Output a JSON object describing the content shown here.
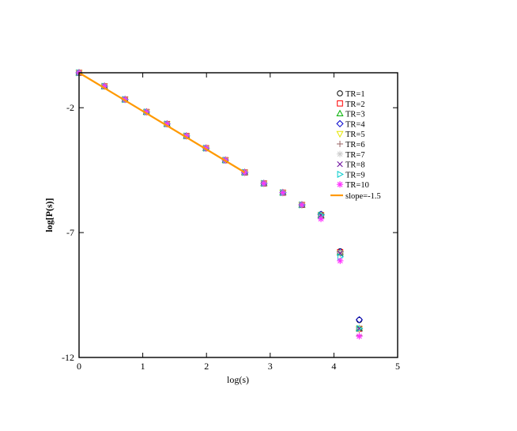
{
  "chart_data": {
    "type": "scatter",
    "title": "",
    "xlabel": "log(s)",
    "ylabel": "log[P(s)]",
    "xlim": [
      0,
      5
    ],
    "ylim": [
      -12,
      -0.6
    ],
    "xticks": [
      0,
      1,
      2,
      3,
      4,
      5
    ],
    "yticks": [
      -2,
      -7,
      -12
    ],
    "grid": false,
    "legend_position": "top-right",
    "x": [
      0,
      0.398,
      0.721,
      1.058,
      1.38,
      1.686,
      1.993,
      2.297,
      2.6,
      2.901,
      3.199,
      3.498,
      3.797,
      4.098,
      4.398
    ],
    "series": [
      {
        "name": "TR=1",
        "marker": "circle",
        "color": "#000000",
        "y": [
          -0.6,
          -1.14,
          -1.67,
          -2.17,
          -2.65,
          -3.13,
          -3.62,
          -4.1,
          -4.59,
          -5.03,
          -5.4,
          -5.89,
          -6.27,
          -7.75,
          -10.5
        ]
      },
      {
        "name": "TR=2",
        "marker": "square",
        "color": "#ff0000",
        "y": [
          -0.6,
          -1.14,
          -1.67,
          -2.17,
          -2.65,
          -3.13,
          -3.62,
          -4.1,
          -4.59,
          -5.03,
          -5.4,
          -5.89,
          -6.3,
          -7.78,
          -10.85
        ]
      },
      {
        "name": "TR=3",
        "marker": "triangle-up",
        "color": "#00b000",
        "y": [
          -0.6,
          -1.14,
          -1.67,
          -2.17,
          -2.65,
          -3.13,
          -3.62,
          -4.1,
          -4.59,
          -5.03,
          -5.4,
          -5.89,
          -6.32,
          -7.8,
          -10.84
        ]
      },
      {
        "name": "TR=4",
        "marker": "diamond",
        "color": "#0000cc",
        "y": [
          -0.6,
          -1.14,
          -1.67,
          -2.17,
          -2.65,
          -3.13,
          -3.62,
          -4.1,
          -4.59,
          -5.03,
          -5.4,
          -5.89,
          -6.27,
          -7.77,
          -10.49
        ]
      },
      {
        "name": "TR=5",
        "marker": "triangle-down",
        "color": "#e6e600",
        "y": [
          -0.6,
          -1.14,
          -1.67,
          -2.17,
          -2.65,
          -3.13,
          -3.62,
          -4.1,
          -4.59,
          -5.03,
          -5.4,
          -5.89,
          -6.3,
          -7.82,
          -10.84
        ]
      },
      {
        "name": "TR=6",
        "marker": "plus",
        "color": "#996666",
        "y": [
          -0.6,
          -1.14,
          -1.67,
          -2.17,
          -2.65,
          -3.13,
          -3.62,
          -4.1,
          -4.59,
          -5.03,
          -5.4,
          -5.89,
          -6.36,
          -7.83,
          -11.12
        ]
      },
      {
        "name": "TR=7",
        "marker": "star-light",
        "color": "#cccccc",
        "y": [
          -0.6,
          -1.14,
          -1.67,
          -2.17,
          -2.65,
          -3.13,
          -3.62,
          -4.1,
          -4.59,
          -5.03,
          -5.4,
          -5.89,
          -6.3,
          -7.79,
          -10.84
        ]
      },
      {
        "name": "TR=8",
        "marker": "cross",
        "color": "#660099",
        "y": [
          -0.6,
          -1.14,
          -1.67,
          -2.17,
          -2.65,
          -3.13,
          -3.62,
          -4.1,
          -4.59,
          -5.03,
          -5.4,
          -5.89,
          -6.3,
          -7.83,
          -10.84
        ]
      },
      {
        "name": "TR=9",
        "marker": "triangle-right",
        "color": "#00cccc",
        "y": [
          -0.6,
          -1.14,
          -1.67,
          -2.17,
          -2.65,
          -3.13,
          -3.62,
          -4.1,
          -4.59,
          -5.03,
          -5.4,
          -5.89,
          -6.3,
          -7.97,
          -10.84
        ]
      },
      {
        "name": "TR=10",
        "marker": "asterisk",
        "color": "#ff33ff",
        "y": [
          -0.6,
          -1.14,
          -1.67,
          -2.17,
          -2.65,
          -3.13,
          -3.62,
          -4.1,
          -4.59,
          -5.03,
          -5.4,
          -5.89,
          -6.45,
          -8.13,
          -11.15
        ]
      }
    ],
    "fit_line": {
      "name": "slope=-1.5",
      "color": "#ff9900",
      "x": [
        0,
        2.6
      ],
      "y": [
        -0.6,
        -4.59
      ]
    }
  }
}
